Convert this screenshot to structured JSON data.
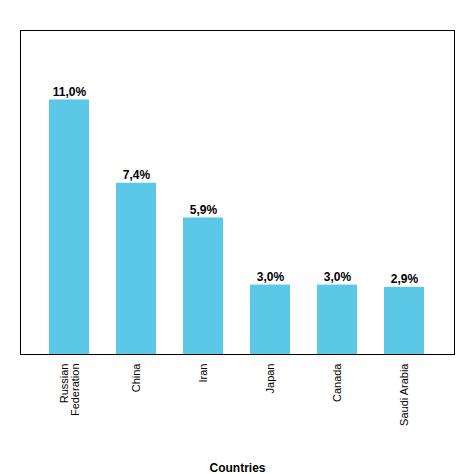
{
  "chart_data": {
    "type": "bar",
    "categories": [
      "Russian\nFederation",
      "China",
      "Iran",
      "Japan",
      "Canada",
      "Saudi Arabia"
    ],
    "values": [
      11.0,
      7.4,
      5.9,
      3.0,
      3.0,
      2.9
    ],
    "value_labels": [
      "11,0%",
      "7,4%",
      "5,9%",
      "3,0%",
      "3,0%",
      "2,9%"
    ],
    "data_labels": true,
    "color": "#5BC8E8",
    "xlabel": "Countries",
    "ylim": [
      0,
      14
    ],
    "tick_labels": "x"
  }
}
